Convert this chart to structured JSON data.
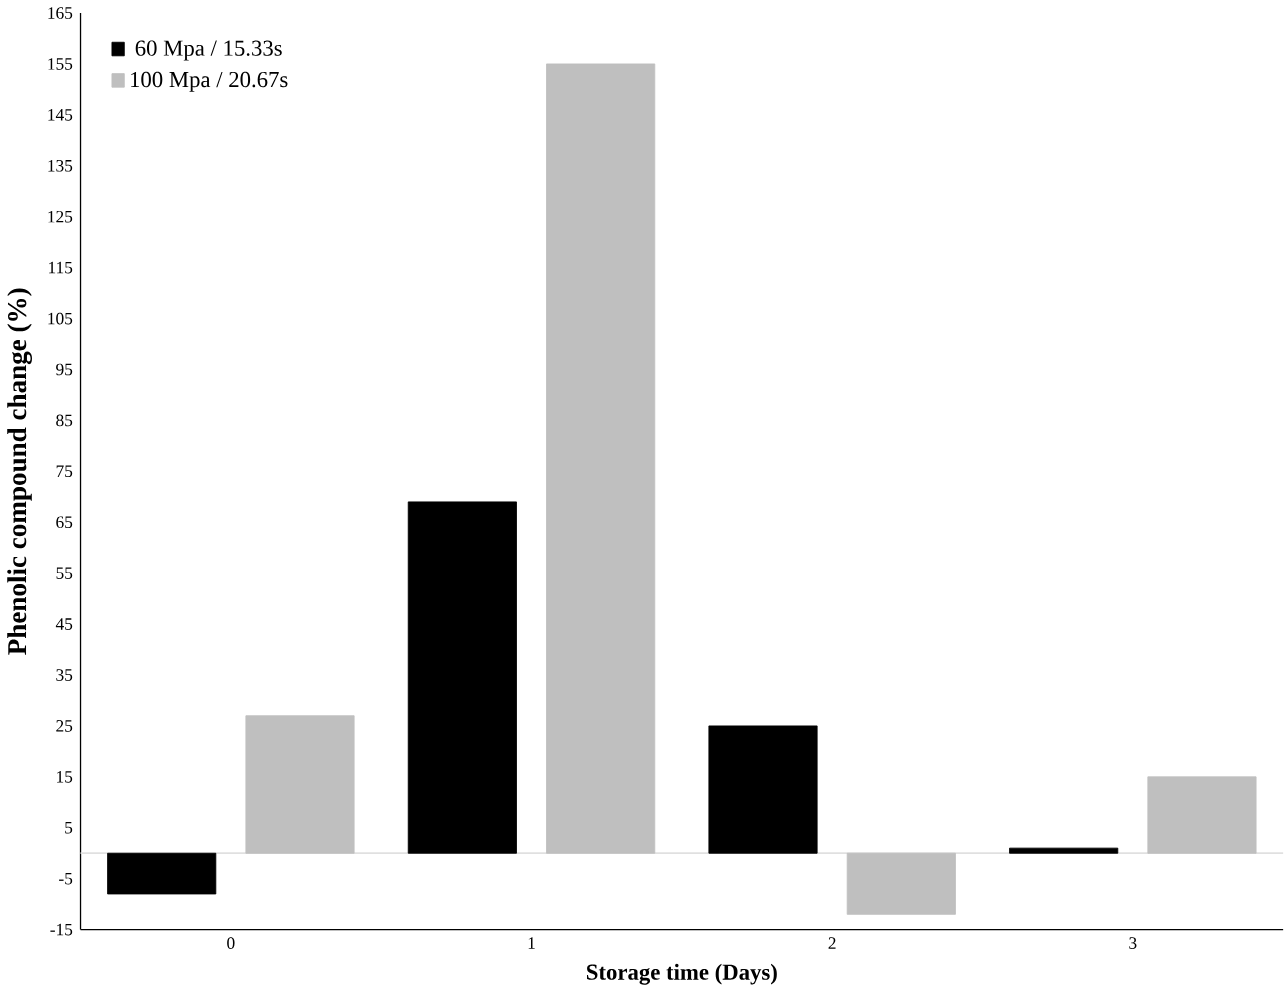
{
  "chart_data": {
    "type": "bar",
    "xlabel": "Storage time (Days)",
    "ylabel": "Phenolic compound change (%)",
    "categories": [
      "0",
      "1",
      "2",
      "3"
    ],
    "series": [
      {
        "name": "60 Mpa / 15.33s",
        "color": "#000000",
        "values": [
          -8,
          69,
          25,
          1
        ]
      },
      {
        "name": "100 Mpa / 20.67s",
        "color": "#bfbfbf",
        "values": [
          27,
          155,
          -12,
          15
        ]
      }
    ],
    "ylim": [
      -15,
      165
    ],
    "yticks": [
      -15,
      -5,
      5,
      15,
      25,
      35,
      45,
      55,
      65,
      75,
      85,
      95,
      105,
      115,
      125,
      135,
      145,
      155,
      165
    ],
    "legend": "top left",
    "grid": false
  }
}
